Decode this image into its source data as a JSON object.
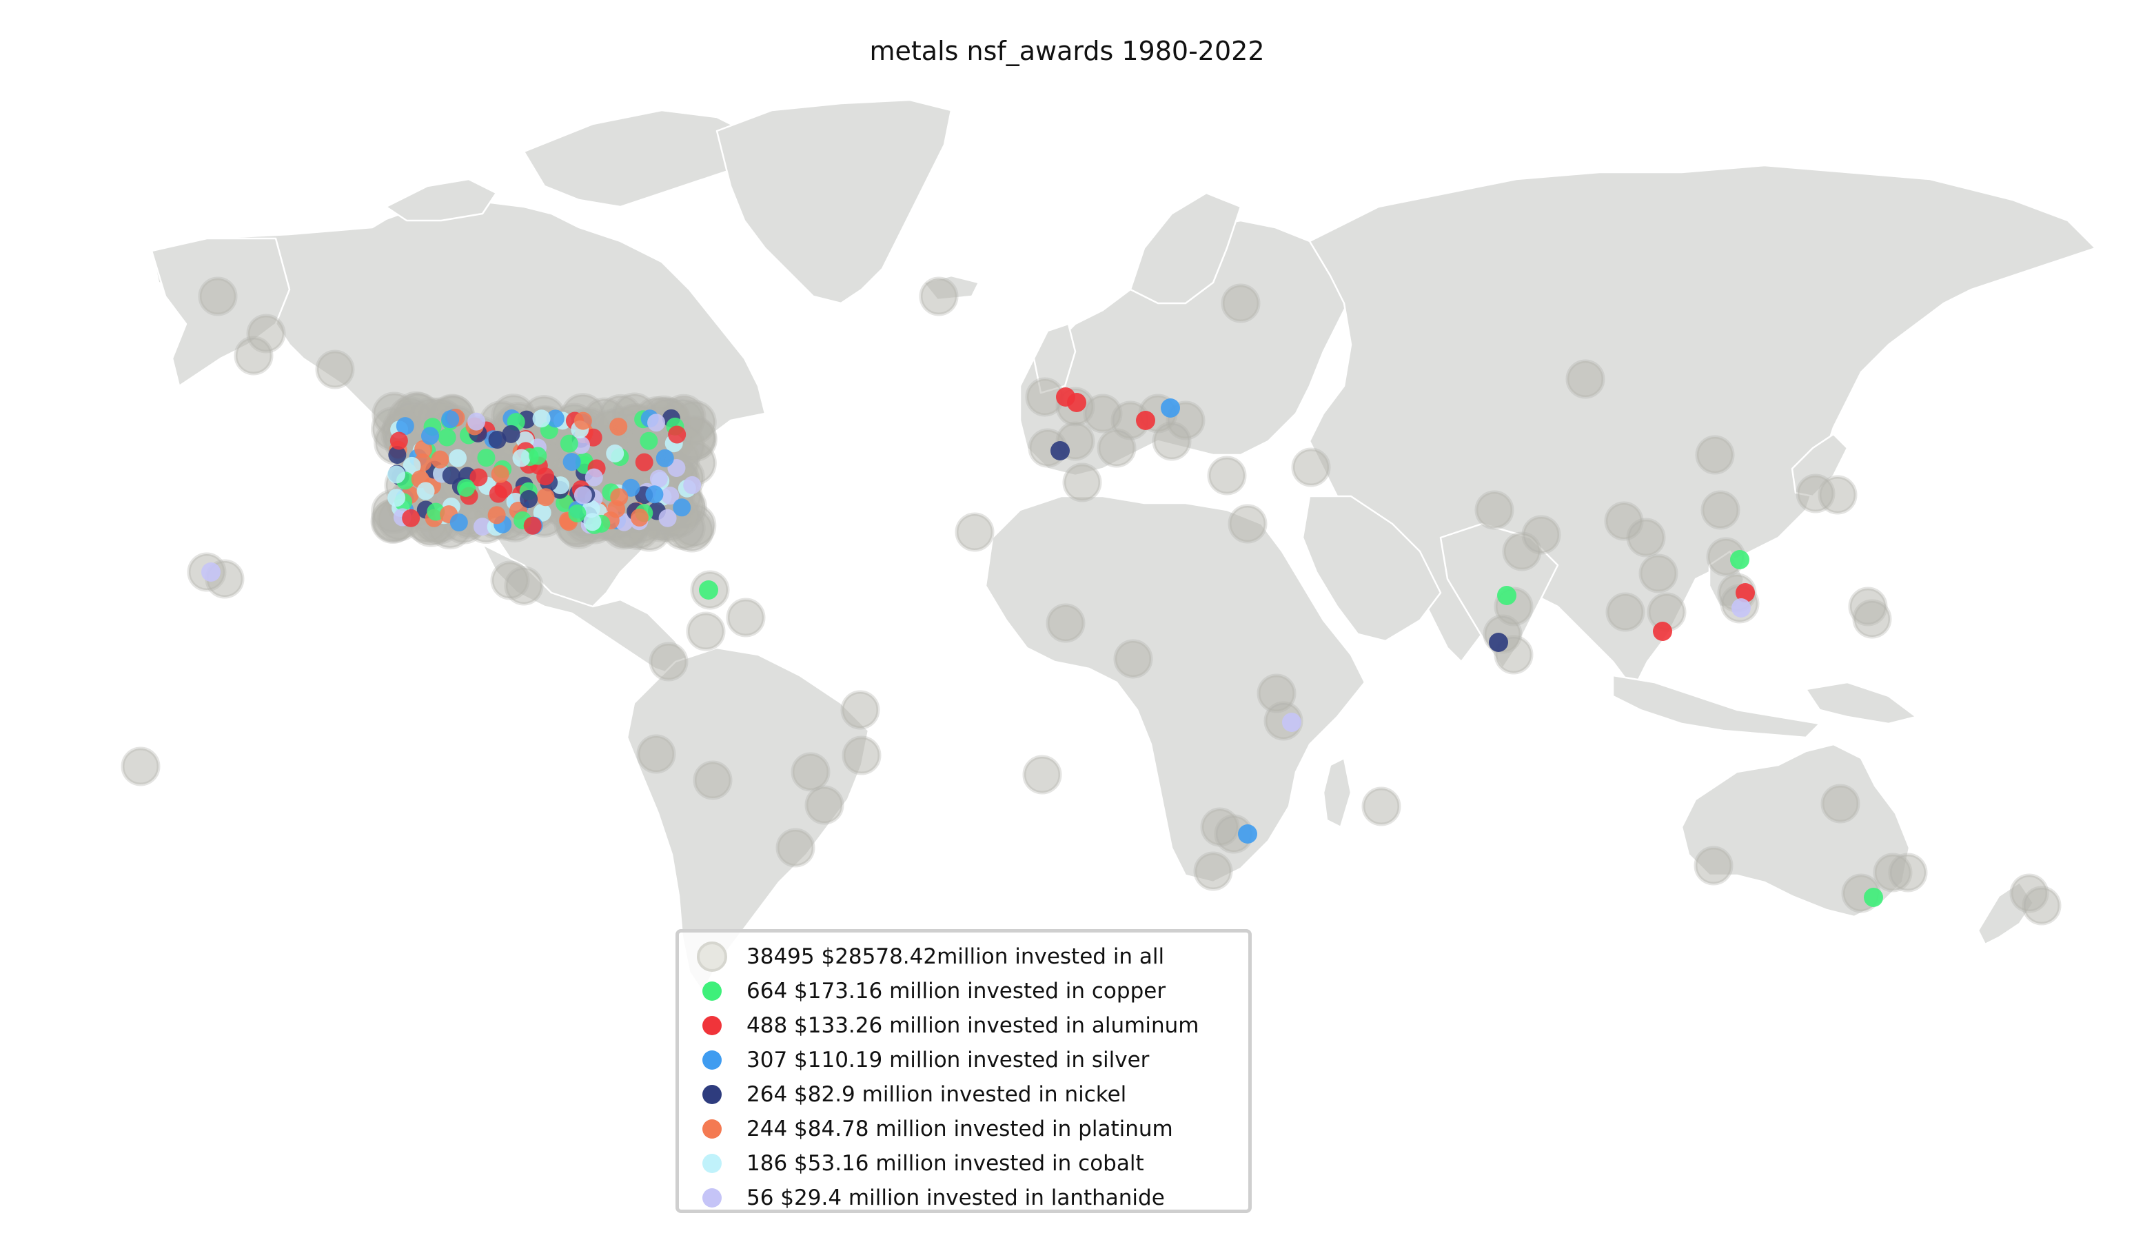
{
  "title": "metals nsf_awards 1980-2022",
  "colors": {
    "land": "#dedfdd",
    "border": "#ffffff",
    "all_marker": "#b3b3ab",
    "copper": "#3ef07a",
    "aluminum": "#f0343a",
    "silver": "#3f9cf0",
    "nickel": "#2e3c7e",
    "platinum": "#f47a52",
    "cobalt": "#c0f2fb",
    "lanthanide": "#c5c4f7"
  },
  "legend": {
    "items": [
      {
        "key": "all",
        "label": "38495 $28578.42million invested in all",
        "color": "#e7e7e1"
      },
      {
        "key": "copper",
        "label": "664 $173.16 million invested in copper",
        "color": "#3ef07a"
      },
      {
        "key": "aluminum",
        "label": "488 $133.26 million invested in aluminum",
        "color": "#f0343a"
      },
      {
        "key": "silver",
        "label": "307 $110.19 million invested in silver",
        "color": "#3f9cf0"
      },
      {
        "key": "nickel",
        "label": "264 $82.9 million invested in nickel",
        "color": "#2e3c7e"
      },
      {
        "key": "platinum",
        "label": "244 $84.78 million invested in platinum",
        "color": "#f47a52"
      },
      {
        "key": "cobalt",
        "label": "186 $53.16 million invested in cobalt",
        "color": "#c0f2fb"
      },
      {
        "key": "lanthanide",
        "label": "56 $29.4 million invested in lanthanide",
        "color": "#c5c4f7"
      }
    ]
  }
}
